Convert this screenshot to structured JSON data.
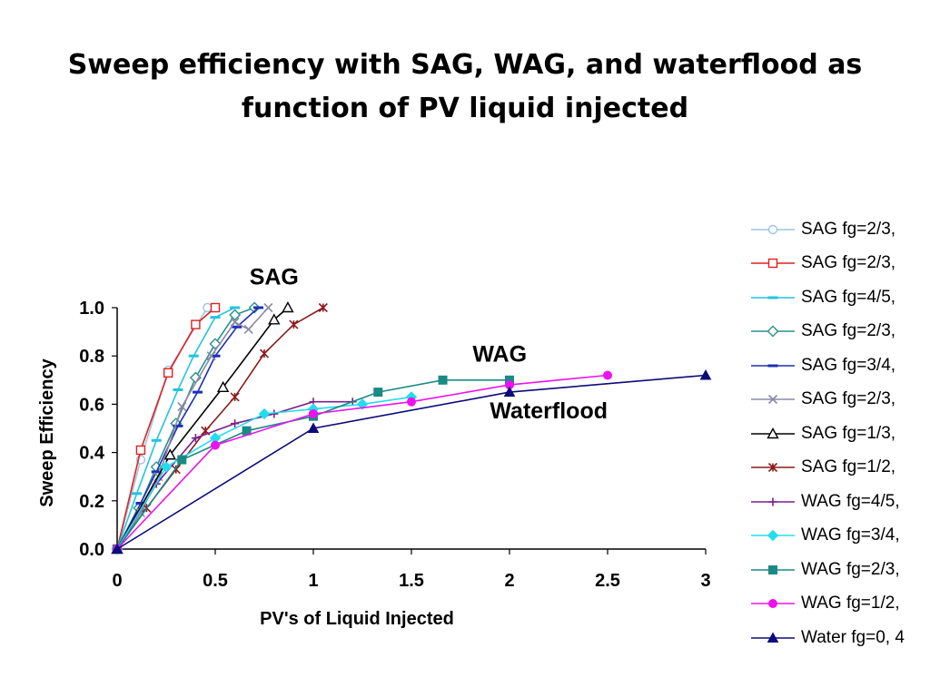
{
  "page": {
    "title_line1": "Sweep efficiency with SAG, WAG, and waterflood as",
    "title_line2": "function of PV liquid injected"
  },
  "chart_data": {
    "type": "line",
    "xlabel": "PV's of Liquid Injected",
    "ylabel": "Sweep Efficiency",
    "xlim": [
      0,
      3
    ],
    "ylim": [
      0,
      1
    ],
    "xticks": [
      "0",
      "0.5",
      "1",
      "1.5",
      "2",
      "2.5",
      "3"
    ],
    "yticks": [
      "0.0",
      "0.2",
      "0.4",
      "0.6",
      "0.8",
      "1.0"
    ],
    "grid": false,
    "legend_position": "right",
    "annotations": [
      {
        "text": "SAG",
        "x": 0.8,
        "y": 1.13
      },
      {
        "text": "WAG",
        "x": 1.95,
        "y": 0.81
      },
      {
        "text": "Waterflood",
        "x": 2.2,
        "y": 0.575
      }
    ],
    "series": [
      {
        "name": "SAG fg=2/3,",
        "color": "#9cc3e6",
        "marker": "circle-open",
        "x": [
          0,
          0.12,
          0.26,
          0.46
        ],
        "y": [
          0,
          0.37,
          0.74,
          1.0
        ]
      },
      {
        "name": "SAG fg=2/3,",
        "color": "#e02020",
        "marker": "square-open",
        "x": [
          0,
          0.12,
          0.26,
          0.4,
          0.5
        ],
        "y": [
          0,
          0.41,
          0.73,
          0.93,
          1.0
        ]
      },
      {
        "name": "SAG fg=4/5,",
        "color": "#22c4e0",
        "marker": "dash",
        "x": [
          0,
          0.1,
          0.2,
          0.31,
          0.39,
          0.5,
          0.6
        ],
        "y": [
          0,
          0.23,
          0.45,
          0.66,
          0.8,
          0.96,
          1.0
        ]
      },
      {
        "name": "SAG fg=2/3,",
        "color": "#2a8f8a",
        "marker": "diamond-open",
        "x": [
          0,
          0.11,
          0.2,
          0.3,
          0.4,
          0.5,
          0.6,
          0.7
        ],
        "y": [
          0,
          0.17,
          0.34,
          0.52,
          0.71,
          0.85,
          0.97,
          1.0
        ]
      },
      {
        "name": "SAG fg=3/4,",
        "color": "#1c2fb8",
        "marker": "dash",
        "x": [
          0,
          0.12,
          0.2,
          0.31,
          0.41,
          0.5,
          0.61,
          0.72
        ],
        "y": [
          0,
          0.19,
          0.32,
          0.51,
          0.65,
          0.8,
          0.92,
          1.0
        ]
      },
      {
        "name": "SAG fg=2/3,",
        "color": "#8a8aa8",
        "marker": "x",
        "x": [
          0,
          0.12,
          0.21,
          0.33,
          0.48,
          0.6,
          0.67,
          0.77
        ],
        "y": [
          0,
          0.15,
          0.3,
          0.59,
          0.8,
          0.94,
          0.91,
          1.0
        ]
      },
      {
        "name": "SAG fg=1/3,",
        "color": "#000000",
        "marker": "triangle-open",
        "x": [
          0,
          0.27,
          0.54,
          0.8,
          0.87
        ],
        "y": [
          0,
          0.39,
          0.67,
          0.95,
          1.0
        ]
      },
      {
        "name": "SAG fg=1/2,",
        "color": "#8b1a1a",
        "marker": "star",
        "x": [
          0,
          0.15,
          0.3,
          0.45,
          0.6,
          0.75,
          0.9,
          1.05
        ],
        "y": [
          0,
          0.17,
          0.33,
          0.49,
          0.63,
          0.81,
          0.93,
          1.0
        ]
      },
      {
        "name": "WAG fg=4/5,",
        "color": "#7a1f8c",
        "marker": "plus",
        "x": [
          0,
          0.2,
          0.4,
          0.6,
          0.8,
          1.0,
          1.2
        ],
        "y": [
          0,
          0.27,
          0.46,
          0.52,
          0.56,
          0.61,
          0.61
        ]
      },
      {
        "name": "WAG fg=3/4,",
        "color": "#22ddee",
        "marker": "diamond-filled",
        "x": [
          0,
          0.25,
          0.5,
          0.75,
          1.0,
          1.25,
          1.5
        ],
        "y": [
          0,
          0.34,
          0.46,
          0.56,
          0.58,
          0.6,
          0.63
        ]
      },
      {
        "name": "WAG fg=2/3,",
        "color": "#1a8a84",
        "marker": "square-filled",
        "x": [
          0,
          0.33,
          0.66,
          1.0,
          1.33,
          1.66,
          2.0
        ],
        "y": [
          0,
          0.37,
          0.49,
          0.55,
          0.65,
          0.7,
          0.7
        ]
      },
      {
        "name": "WAG fg=1/2,",
        "color": "#ee11ee",
        "marker": "circle-filled",
        "x": [
          0,
          0.5,
          1.0,
          1.5,
          2.0,
          2.5
        ],
        "y": [
          0,
          0.43,
          0.56,
          0.61,
          0.68,
          0.72
        ]
      },
      {
        "name": "Water fg=0, 4",
        "color": "#0b0b7a",
        "marker": "triangle-filled",
        "x": [
          0,
          1.0,
          2.0,
          3.0
        ],
        "y": [
          0,
          0.5,
          0.65,
          0.72
        ]
      }
    ]
  }
}
